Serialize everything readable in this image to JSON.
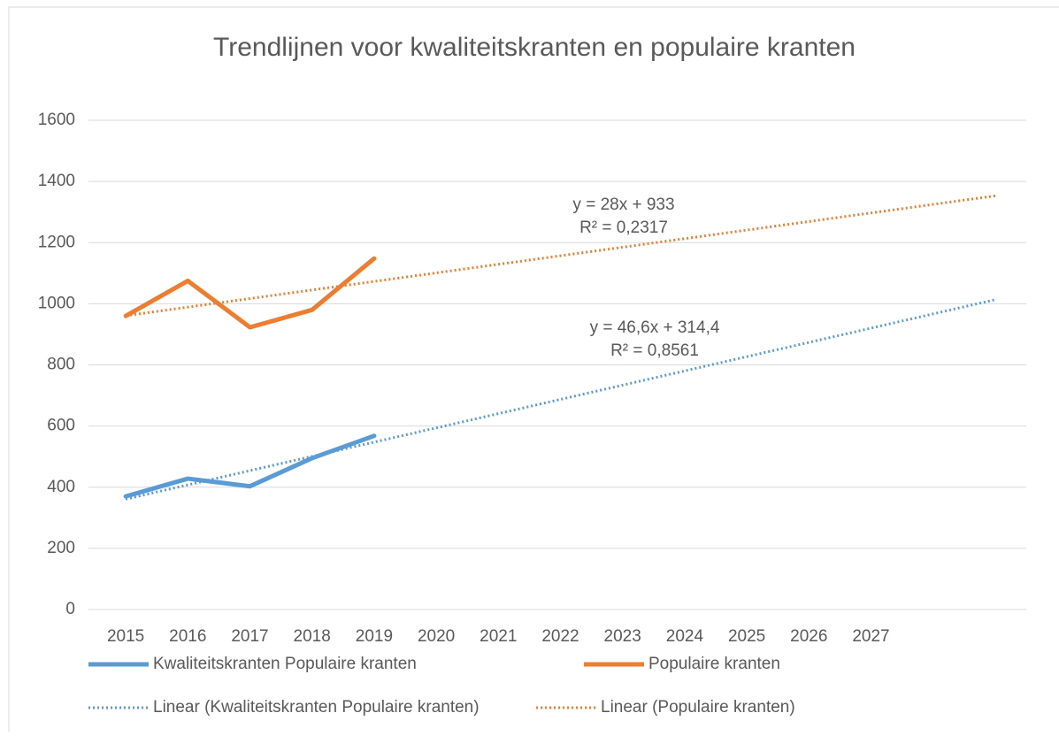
{
  "chart_data": {
    "type": "line",
    "title": "Trendlijnen voor kwaliteitskranten en populaire kranten",
    "categories": [
      "2015",
      "2016",
      "2017",
      "2018",
      "2019",
      "2020",
      "2021",
      "2022",
      "2023",
      "2024",
      "2025",
      "2026",
      "2027",
      null,
      null
    ],
    "series": [
      {
        "name": "Kwaliteitskranten Populaire kranten",
        "color": "#5b9bd5",
        "style": "solid",
        "values": [
          370,
          428,
          403,
          495,
          568,
          null,
          null,
          null,
          null,
          null,
          null,
          null,
          null,
          null,
          null
        ]
      },
      {
        "name": "Populaire kranten",
        "color": "#ed7d31",
        "style": "solid",
        "values": [
          960,
          1075,
          923,
          980,
          1148,
          null,
          null,
          null,
          null,
          null,
          null,
          null,
          null,
          null,
          null
        ]
      },
      {
        "name": "Linear (Kwaliteitskranten Populaire kranten)",
        "color": "#5b9bd5",
        "style": "dotted",
        "values": [
          361,
          407.6,
          454.2,
          500.8,
          547.4,
          594,
          640.6,
          687.2,
          733.8,
          780.4,
          827,
          873.6,
          920.2,
          966.8,
          1013.4
        ]
      },
      {
        "name": "Linear (Populaire kranten)",
        "color": "#ed7d31",
        "style": "dotted",
        "values": [
          961,
          989,
          1017,
          1045,
          1073,
          1101,
          1129,
          1157,
          1185,
          1213,
          1241,
          1269,
          1297,
          1325,
          1353
        ]
      }
    ],
    "annotations": [
      {
        "text": "y = 28x + 933",
        "text2": "R² = 0,2317"
      },
      {
        "text": "y = 46,6x + 314,4",
        "text2": "R² = 0,8561"
      }
    ],
    "ylim": [
      0,
      1600
    ],
    "yticks": [
      0,
      200,
      400,
      600,
      800,
      1000,
      1200,
      1400,
      1600
    ],
    "grid": true,
    "legend": "bottom"
  }
}
